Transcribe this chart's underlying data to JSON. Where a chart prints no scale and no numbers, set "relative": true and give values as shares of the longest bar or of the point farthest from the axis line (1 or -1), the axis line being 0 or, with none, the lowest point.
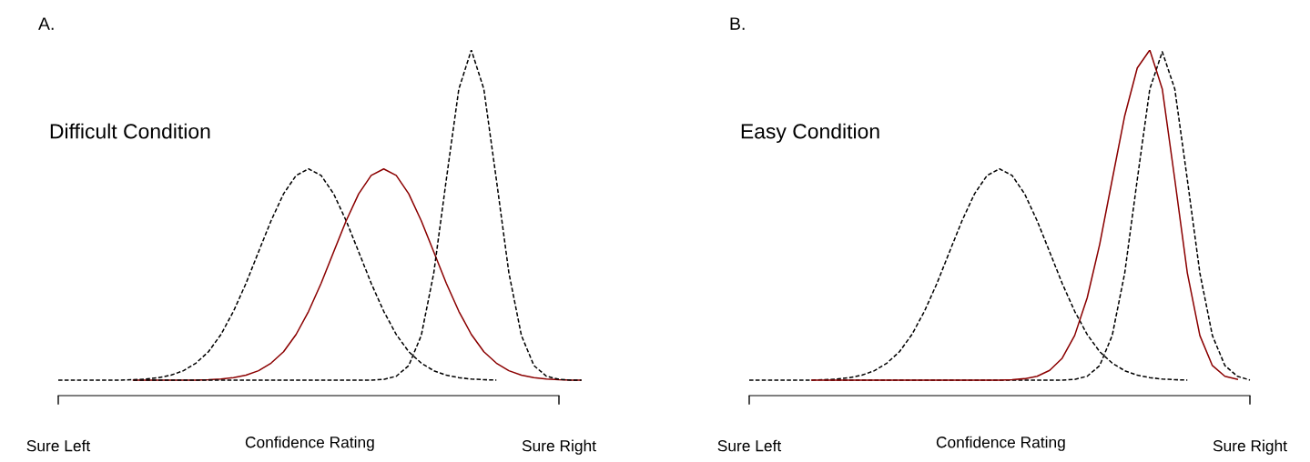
{
  "chart_data": [
    {
      "type": "line",
      "title": "A.",
      "xlabel": "Confidence Rating",
      "relative": true,
      "annotations": [
        "Difficult Condition"
      ],
      "grid": false,
      "legend": false,
      "marker": "none",
      "categories": [
        "Sure Left",
        null,
        null,
        null,
        null,
        null,
        null,
        null,
        null,
        null,
        null,
        null,
        null,
        null,
        null,
        null,
        null,
        null,
        null,
        null,
        null,
        null,
        null,
        null,
        null,
        null,
        null,
        null,
        null,
        null,
        null,
        null,
        null,
        null,
        null,
        null,
        null,
        null,
        null,
        null,
        "Sure Right",
        null,
        null
      ],
      "series": [
        {
          "color": "#000000",
          "line_style": "dashed",
          "values": [
            0.045,
            0.045,
            0.045,
            0.045,
            0.045,
            0.045,
            0.046,
            0.048,
            0.052,
            0.059,
            0.072,
            0.094,
            0.127,
            0.177,
            0.244,
            0.325,
            0.416,
            0.506,
            0.584,
            0.637,
            0.656,
            0.637,
            0.584,
            0.506,
            0.416,
            0.325,
            0.244,
            0.177,
            0.127,
            0.094,
            0.072,
            0.059,
            0.052,
            0.048,
            0.046,
            0.045,
            null,
            null,
            null,
            null,
            null,
            null,
            null
          ]
        },
        {
          "color": "#8b0000",
          "line_style": "solid",
          "values": [
            null,
            null,
            null,
            null,
            null,
            null,
            0.045,
            0.045,
            0.045,
            0.045,
            0.045,
            0.045,
            0.046,
            0.048,
            0.052,
            0.059,
            0.072,
            0.094,
            0.127,
            0.177,
            0.244,
            0.325,
            0.416,
            0.506,
            0.584,
            0.637,
            0.656,
            0.637,
            0.584,
            0.506,
            0.416,
            0.325,
            0.244,
            0.177,
            0.127,
            0.094,
            0.072,
            0.059,
            0.052,
            0.048,
            0.046,
            0.045,
            0.045
          ]
        },
        {
          "color": "#000000",
          "line_style": "dashed",
          "values": [
            null,
            null,
            null,
            null,
            null,
            null,
            0.045,
            0.045,
            0.045,
            0.045,
            0.045,
            0.045,
            0.045,
            0.045,
            0.045,
            0.045,
            0.045,
            0.045,
            0.045,
            0.045,
            0.045,
            0.045,
            0.045,
            0.045,
            0.045,
            0.045,
            0.047,
            0.056,
            0.087,
            0.174,
            0.355,
            0.625,
            0.887,
            1,
            0.887,
            0.625,
            0.355,
            0.174,
            0.087,
            0.056,
            0.047,
            0.045,
            0.045
          ]
        }
      ]
    },
    {
      "type": "line",
      "title": "B.",
      "xlabel": "Confidence Rating",
      "relative": true,
      "annotations": [
        "Easy Condition"
      ],
      "grid": false,
      "legend": false,
      "marker": "none",
      "categories": [
        "Sure Left",
        null,
        null,
        null,
        null,
        null,
        null,
        null,
        null,
        null,
        null,
        null,
        null,
        null,
        null,
        null,
        null,
        null,
        null,
        null,
        null,
        null,
        null,
        null,
        null,
        null,
        null,
        null,
        null,
        null,
        null,
        null,
        null,
        null,
        null,
        null,
        null,
        null,
        null,
        null,
        "Sure Right",
        null,
        null
      ],
      "series": [
        {
          "color": "#000000",
          "line_style": "dashed",
          "values": [
            0.045,
            0.045,
            0.045,
            0.045,
            0.045,
            0.045,
            0.046,
            0.048,
            0.052,
            0.059,
            0.072,
            0.094,
            0.127,
            0.177,
            0.244,
            0.325,
            0.416,
            0.506,
            0.584,
            0.637,
            0.656,
            0.637,
            0.584,
            0.506,
            0.416,
            0.325,
            0.244,
            0.177,
            0.127,
            0.094,
            0.072,
            0.059,
            0.052,
            0.048,
            0.046,
            0.045,
            null,
            null,
            null,
            null,
            null,
            null,
            null
          ]
        },
        {
          "color": "#000000",
          "line_style": "dashed",
          "values": [
            null,
            null,
            null,
            null,
            null,
            null,
            0.045,
            0.045,
            0.045,
            0.045,
            0.045,
            0.045,
            0.045,
            0.045,
            0.045,
            0.045,
            0.045,
            0.045,
            0.045,
            0.045,
            0.045,
            0.045,
            0.045,
            0.045,
            0.045,
            0.045,
            0.047,
            0.056,
            0.087,
            0.174,
            0.355,
            0.625,
            0.887,
            0.995,
            0.887,
            0.625,
            0.355,
            0.174,
            0.087,
            0.056,
            0.045,
            null,
            null
          ]
        },
        {
          "color": "#8b0000",
          "line_style": "solid",
          "values": [
            null,
            null,
            null,
            null,
            null,
            0.045,
            0.045,
            0.045,
            0.045,
            0.045,
            0.045,
            0.045,
            0.045,
            0.045,
            0.045,
            0.045,
            0.045,
            0.045,
            0.045,
            0.045,
            0.045,
            0.046,
            0.049,
            0.056,
            0.073,
            0.108,
            0.174,
            0.283,
            0.438,
            0.625,
            0.81,
            0.948,
            1,
            0.887,
            0.625,
            0.355,
            0.174,
            0.087,
            0.056,
            0.047,
            null,
            null,
            null
          ]
        }
      ]
    }
  ]
}
